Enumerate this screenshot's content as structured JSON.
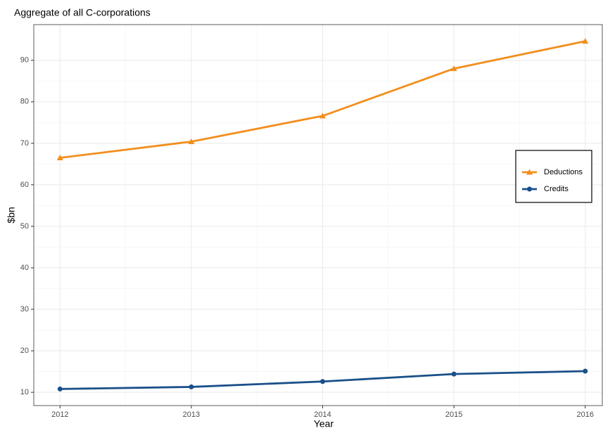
{
  "chart_data": {
    "type": "line",
    "title": "Aggregate of all C-corporations",
    "x_label": "Year",
    "y_label": "$bn",
    "x": [
      2012,
      2013,
      2014,
      2015,
      2016
    ],
    "series": [
      {
        "name": "Deductions",
        "color": "#f28e1c",
        "marker": "triangle",
        "values": [
          66.5,
          70.4,
          76.6,
          88.0,
          94.6
        ]
      },
      {
        "name": "Credits",
        "color": "#1a5089",
        "marker": "circle",
        "values": [
          10.8,
          11.3,
          12.6,
          14.4,
          15.1
        ]
      }
    ],
    "xlim": [
      2011.8,
      2016.13
    ],
    "xticks": [
      2012,
      2013,
      2014,
      2015,
      2016
    ],
    "ylim": [
      6.8,
      98.6
    ],
    "yticks": [
      10,
      20,
      30,
      40,
      50,
      60,
      70,
      80,
      90
    ],
    "grid": true,
    "minor_grid": true,
    "legend_position": "right"
  }
}
